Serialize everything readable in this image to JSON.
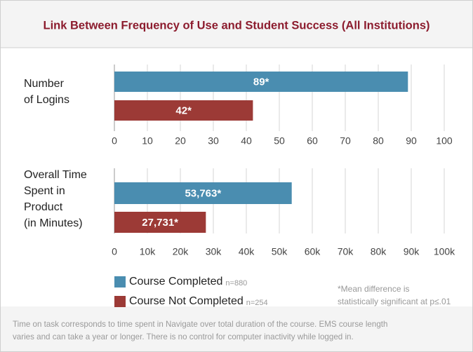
{
  "title": "Link Between Frequency of Use and Student Success (All Institutions)",
  "chart_data": [
    {
      "type": "bar",
      "orientation": "horizontal",
      "ylabel_lines": [
        "Number",
        "of Logins"
      ],
      "series": [
        {
          "color": "#4a8db0",
          "values": [
            89
          ],
          "value_labels": [
            "89*"
          ]
        },
        {
          "color": "#9c3a36",
          "values": [
            42
          ],
          "value_labels": [
            "42*"
          ]
        }
      ],
      "xlim": [
        0,
        100
      ],
      "xticks": [
        0,
        10,
        20,
        30,
        40,
        50,
        60,
        70,
        80,
        90,
        100
      ],
      "grid": true
    },
    {
      "type": "bar",
      "orientation": "horizontal",
      "ylabel_lines": [
        "Overall Time",
        "Spent in",
        "Product",
        "(in Minutes)"
      ],
      "series": [
        {
          "color": "#4a8db0",
          "values": [
            53763
          ],
          "value_labels": [
            "53,763*"
          ]
        },
        {
          "color": "#9c3a36",
          "values": [
            27731
          ],
          "value_labels": [
            "27,731*"
          ]
        }
      ],
      "xlim": [
        0,
        100000
      ],
      "xticks": [
        0,
        {
          "value": 10000,
          "label": "10k"
        },
        {
          "value": 20000,
          "label": "20k"
        },
        {
          "value": 30000,
          "label": "30k"
        },
        {
          "value": 40000,
          "label": "40k"
        },
        {
          "value": 50000,
          "label": "50k"
        },
        {
          "value": 60000,
          "label": "60k"
        },
        {
          "value": 70000,
          "label": "70k"
        },
        {
          "value": 80000,
          "label": "80k"
        },
        {
          "value": 90000,
          "label": "90k"
        },
        {
          "value": 100000,
          "label": "100k"
        }
      ],
      "grid": true
    }
  ],
  "legend": [
    {
      "name": "Course Completed",
      "note": "n=880",
      "color": "#4a8db0"
    },
    {
      "name": "Course Not Completed",
      "note": "n=254",
      "color": "#9c3a36"
    }
  ],
  "footnote_lines": [
    "*Mean difference is",
    "statistically significant at p≤.01"
  ],
  "footer_lines": [
    "Time on task corresponds to time spent in Navigate over total duration of the course. EMS course length",
    "varies and can take a year or longer. There is no control for computer inactivity while logged in."
  ]
}
